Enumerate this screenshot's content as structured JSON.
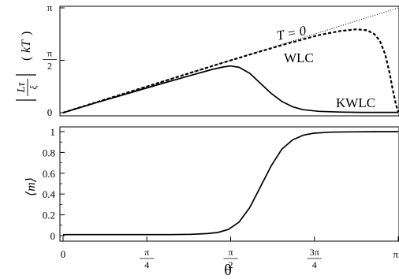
{
  "chart_data": [
    {
      "id": "torque",
      "type": "line",
      "ylabel_main": "|Lτ/ξ|",
      "ylabel_unit": "(kT)",
      "xlim": [
        0,
        3.1416
      ],
      "ylim": [
        0,
        3.1416
      ],
      "yticks": [
        {
          "value": 0,
          "label": "0"
        },
        {
          "value": 1.5708,
          "label": "π/2"
        },
        {
          "value": 3.1416,
          "label": "π"
        }
      ],
      "annotations": [
        {
          "text": "T = 0"
        },
        {
          "text": "WLC"
        },
        {
          "text": "KWLC"
        }
      ],
      "grid": false,
      "series": [
        {
          "name": "T = 0",
          "style": "dotted",
          "x": [
            0,
            3.1416
          ],
          "y": [
            0,
            3.1416
          ]
        },
        {
          "name": "WLC",
          "style": "dashed",
          "x": [
            0,
            0.3,
            0.6,
            0.9,
            1.2,
            1.5,
            1.8,
            2.1,
            2.4,
            2.6,
            2.75,
            2.85,
            2.92,
            2.97,
            3.02,
            3.06,
            3.09,
            3.12,
            3.1416
          ],
          "y": [
            0,
            0.3,
            0.6,
            0.9,
            1.2,
            1.5,
            1.79,
            2.07,
            2.33,
            2.45,
            2.5,
            2.47,
            2.35,
            2.15,
            1.75,
            1.2,
            0.7,
            0.25,
            0.02
          ]
        },
        {
          "name": "KWLC",
          "style": "solid",
          "x": [
            0,
            0.3,
            0.6,
            0.9,
            1.2,
            1.4,
            1.5,
            1.57,
            1.65,
            1.75,
            1.85,
            1.95,
            2.05,
            2.15,
            2.25,
            2.4,
            2.6,
            2.8,
            3.0,
            3.1416
          ],
          "y": [
            0,
            0.29,
            0.57,
            0.85,
            1.12,
            1.3,
            1.37,
            1.4,
            1.36,
            1.18,
            0.88,
            0.58,
            0.34,
            0.18,
            0.09,
            0.04,
            0.02,
            0.01,
            0.01,
            0.01
          ]
        }
      ]
    },
    {
      "id": "magnetization",
      "type": "line",
      "ylabel": "⟨m⟩",
      "xlabel": "θ",
      "xlim": [
        0,
        3.1416
      ],
      "ylim": [
        0,
        1
      ],
      "yticks": [
        {
          "value": 0,
          "label": "0"
        },
        {
          "value": 0.2,
          "label": "0.2"
        },
        {
          "value": 0.4,
          "label": "0.4"
        },
        {
          "value": 0.6,
          "label": "0.6"
        },
        {
          "value": 0.8,
          "label": "0.8"
        },
        {
          "value": 1,
          "label": "1"
        }
      ],
      "xticks": [
        {
          "value": 0,
          "label": "0"
        },
        {
          "value": 0.7854,
          "label": "π/4"
        },
        {
          "value": 1.5708,
          "label": "π/2"
        },
        {
          "value": 2.3562,
          "label": "3π/4"
        },
        {
          "value": 3.1416,
          "label": "π"
        }
      ],
      "grid": false,
      "series": [
        {
          "style": "solid",
          "x": [
            0,
            0.5,
            1.0,
            1.2,
            1.35,
            1.45,
            1.55,
            1.65,
            1.75,
            1.85,
            1.95,
            2.05,
            2.15,
            2.25,
            2.35,
            2.5,
            2.7,
            2.9,
            3.1416
          ],
          "y": [
            0.01,
            0.01,
            0.01,
            0.013,
            0.02,
            0.03,
            0.06,
            0.13,
            0.27,
            0.47,
            0.67,
            0.83,
            0.92,
            0.965,
            0.985,
            0.995,
            0.998,
            0.999,
            1.0
          ]
        }
      ]
    }
  ]
}
